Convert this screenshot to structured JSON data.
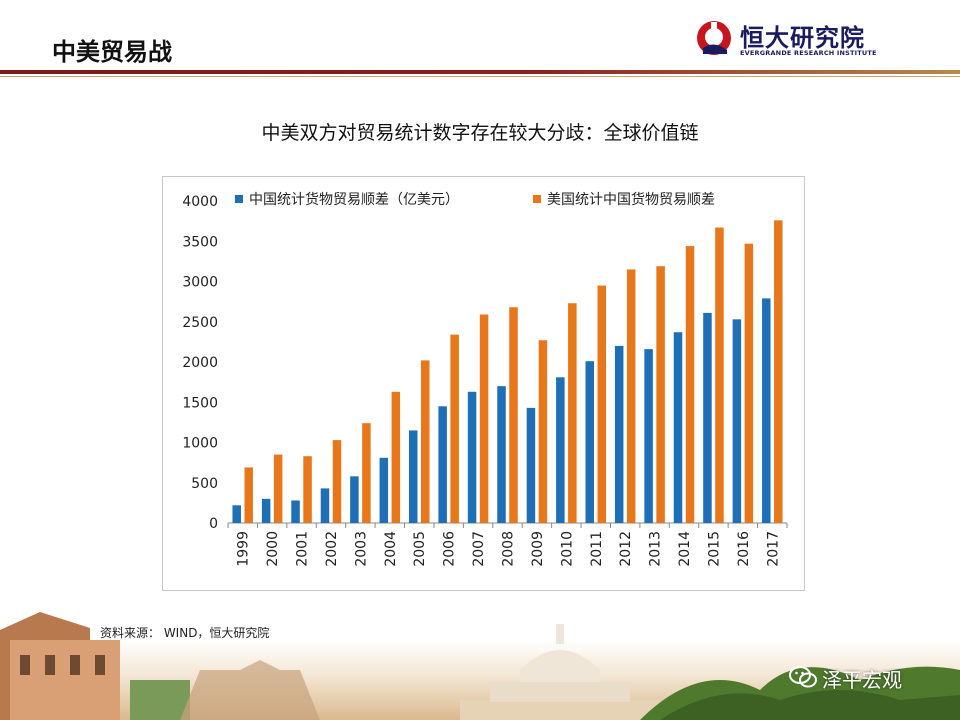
{
  "header": {
    "title": "中美贸易战"
  },
  "logo": {
    "name_cn": "恒大研究院",
    "name_en": "EVERGRANDE RESEARCH INSTITUTE"
  },
  "source": "资料来源： WIND，恒大研究院",
  "watermark": {
    "text": "泽平宏观",
    "icon": "wechat-icon"
  },
  "colors": {
    "series1": "#1f6fb7",
    "series2": "#e8771c",
    "header_rule": "#8a1f1f"
  },
  "chart_data": {
    "type": "bar",
    "title": "中美双方对贸易统计数字存在较大分歧：全球价值链",
    "categories": [
      "1999",
      "2000",
      "2001",
      "2002",
      "2003",
      "2004",
      "2005",
      "2006",
      "2007",
      "2008",
      "2009",
      "2010",
      "2011",
      "2012",
      "2013",
      "2014",
      "2015",
      "2016",
      "2017"
    ],
    "series": [
      {
        "name": "中国统计货物贸易顺差（亿美元）",
        "values": [
          220,
          300,
          280,
          430,
          580,
          810,
          1150,
          1450,
          1630,
          1700,
          1430,
          1810,
          2010,
          2200,
          2160,
          2370,
          2610,
          2530,
          2790
        ]
      },
      {
        "name": "美国统计中国货物贸易顺差",
        "values": [
          690,
          850,
          830,
          1030,
          1240,
          1630,
          2020,
          2340,
          2590,
          2680,
          2270,
          2730,
          2950,
          3150,
          3190,
          3440,
          3670,
          3470,
          3760
        ]
      }
    ],
    "yticks": [
      0,
      500,
      1000,
      1500,
      2000,
      2500,
      3000,
      3500,
      4000
    ],
    "ylim": [
      0,
      4000
    ],
    "legend": "top",
    "grid": false
  }
}
